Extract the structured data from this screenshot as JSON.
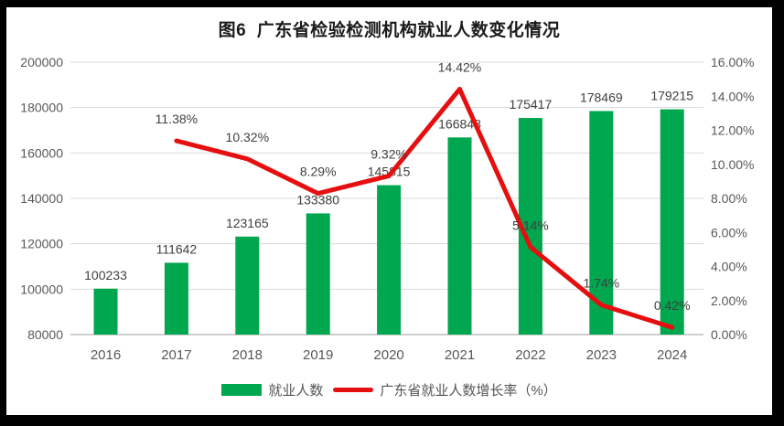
{
  "title": "图6  广东省检验检测机构就业人数变化情况",
  "colors": {
    "bar": "#00A74F",
    "line": "#E60F0F",
    "grid": "#D9D9D9",
    "axis_line": "#BFBFBF",
    "tick_text": "#595959",
    "label_text": "#404040",
    "frame": "#000000",
    "background": "#FFFFFF"
  },
  "chart_data": {
    "type": "bar+line combo",
    "title": "图6  广东省检验检测机构就业人数变化情况",
    "categories": [
      "2016",
      "2017",
      "2018",
      "2019",
      "2020",
      "2021",
      "2022",
      "2023",
      "2024"
    ],
    "series": [
      {
        "name": "就业人数",
        "type": "bar",
        "axis": "left",
        "color": "#00A74F",
        "values": [
          100233,
          111642,
          123165,
          133380,
          145815,
          166848,
          175417,
          178469,
          179215
        ],
        "data_labels": [
          "100233",
          "111642",
          "123165",
          "133380",
          "145815",
          "166848",
          "175417",
          "178469",
          "179215"
        ]
      },
      {
        "name": "广东省就业人数增长率（%）",
        "type": "line",
        "axis": "right",
        "color": "#E60F0F",
        "values": [
          null,
          11.38,
          10.32,
          8.29,
          9.32,
          14.42,
          5.14,
          1.74,
          0.42
        ],
        "data_labels": [
          "",
          "11.38%",
          "10.32%",
          "8.29%",
          "9.32%",
          "14.42%",
          "5.14%",
          "1.74%",
          "0.42%"
        ]
      }
    ],
    "left_axis": {
      "min": 80000,
      "max": 200000,
      "step": 20000,
      "tick_labels": [
        "80000",
        "100000",
        "120000",
        "140000",
        "160000",
        "180000",
        "200000"
      ]
    },
    "right_axis": {
      "min": 0,
      "max": 16,
      "step": 2,
      "tick_labels": [
        "0.00%",
        "2.00%",
        "4.00%",
        "6.00%",
        "8.00%",
        "10.00%",
        "12.00%",
        "14.00%",
        "16.00%"
      ]
    },
    "grid": true,
    "legend_position": "bottom"
  }
}
